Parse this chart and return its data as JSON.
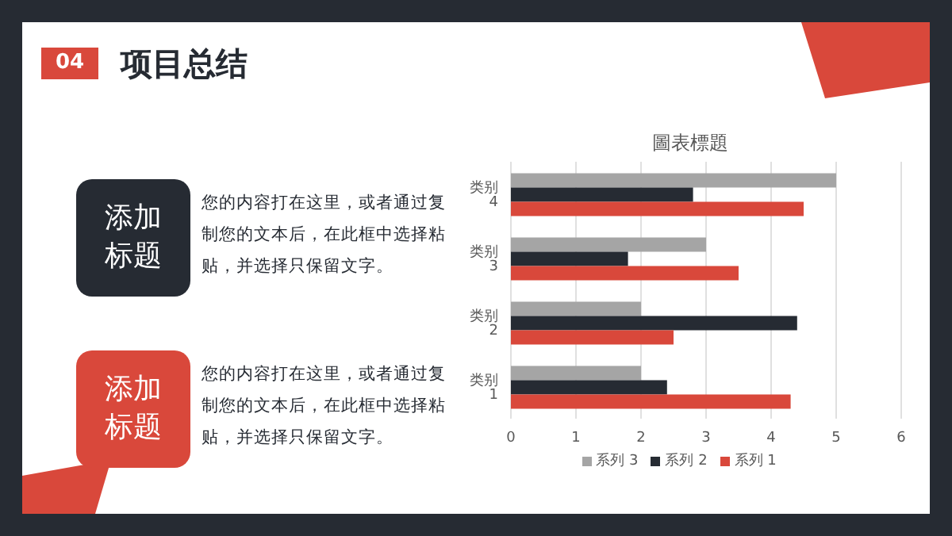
{
  "chart_data": [
    {
      "type": "other",
      "title": "项目总结",
      "annotations": [
        "04",
        "添加标题",
        "您的内容打在这里，或者通过复制您的文本后，在此框中选择粘贴，并选择只保留文字。",
        "添加标题",
        "您的内容打在这里，或者通过复制您的文本后，在此框中选择粘贴，并选择只保留文字。"
      ]
    },
    {
      "type": "bar",
      "orientation": "horizontal",
      "title": "圖表標題",
      "categories": [
        "类别 4",
        "类别 3",
        "类别 2",
        "类别 1"
      ],
      "series": [
        {
          "name": "系列 3",
          "color": "#a5a5a5",
          "values": [
            5,
            3,
            2,
            2
          ]
        },
        {
          "name": "系列 2",
          "color": "#262b33",
          "values": [
            2.8,
            1.8,
            4.4,
            2.4
          ]
        },
        {
          "name": "系列 1",
          "color": "#d9483b",
          "values": [
            4.5,
            3.5,
            2.5,
            4.3
          ]
        }
      ],
      "xlim": [
        0,
        6
      ],
      "xticks": [
        0,
        1,
        2,
        3,
        4,
        5,
        6
      ],
      "grid": "x",
      "legend": "bottom"
    }
  ]
}
